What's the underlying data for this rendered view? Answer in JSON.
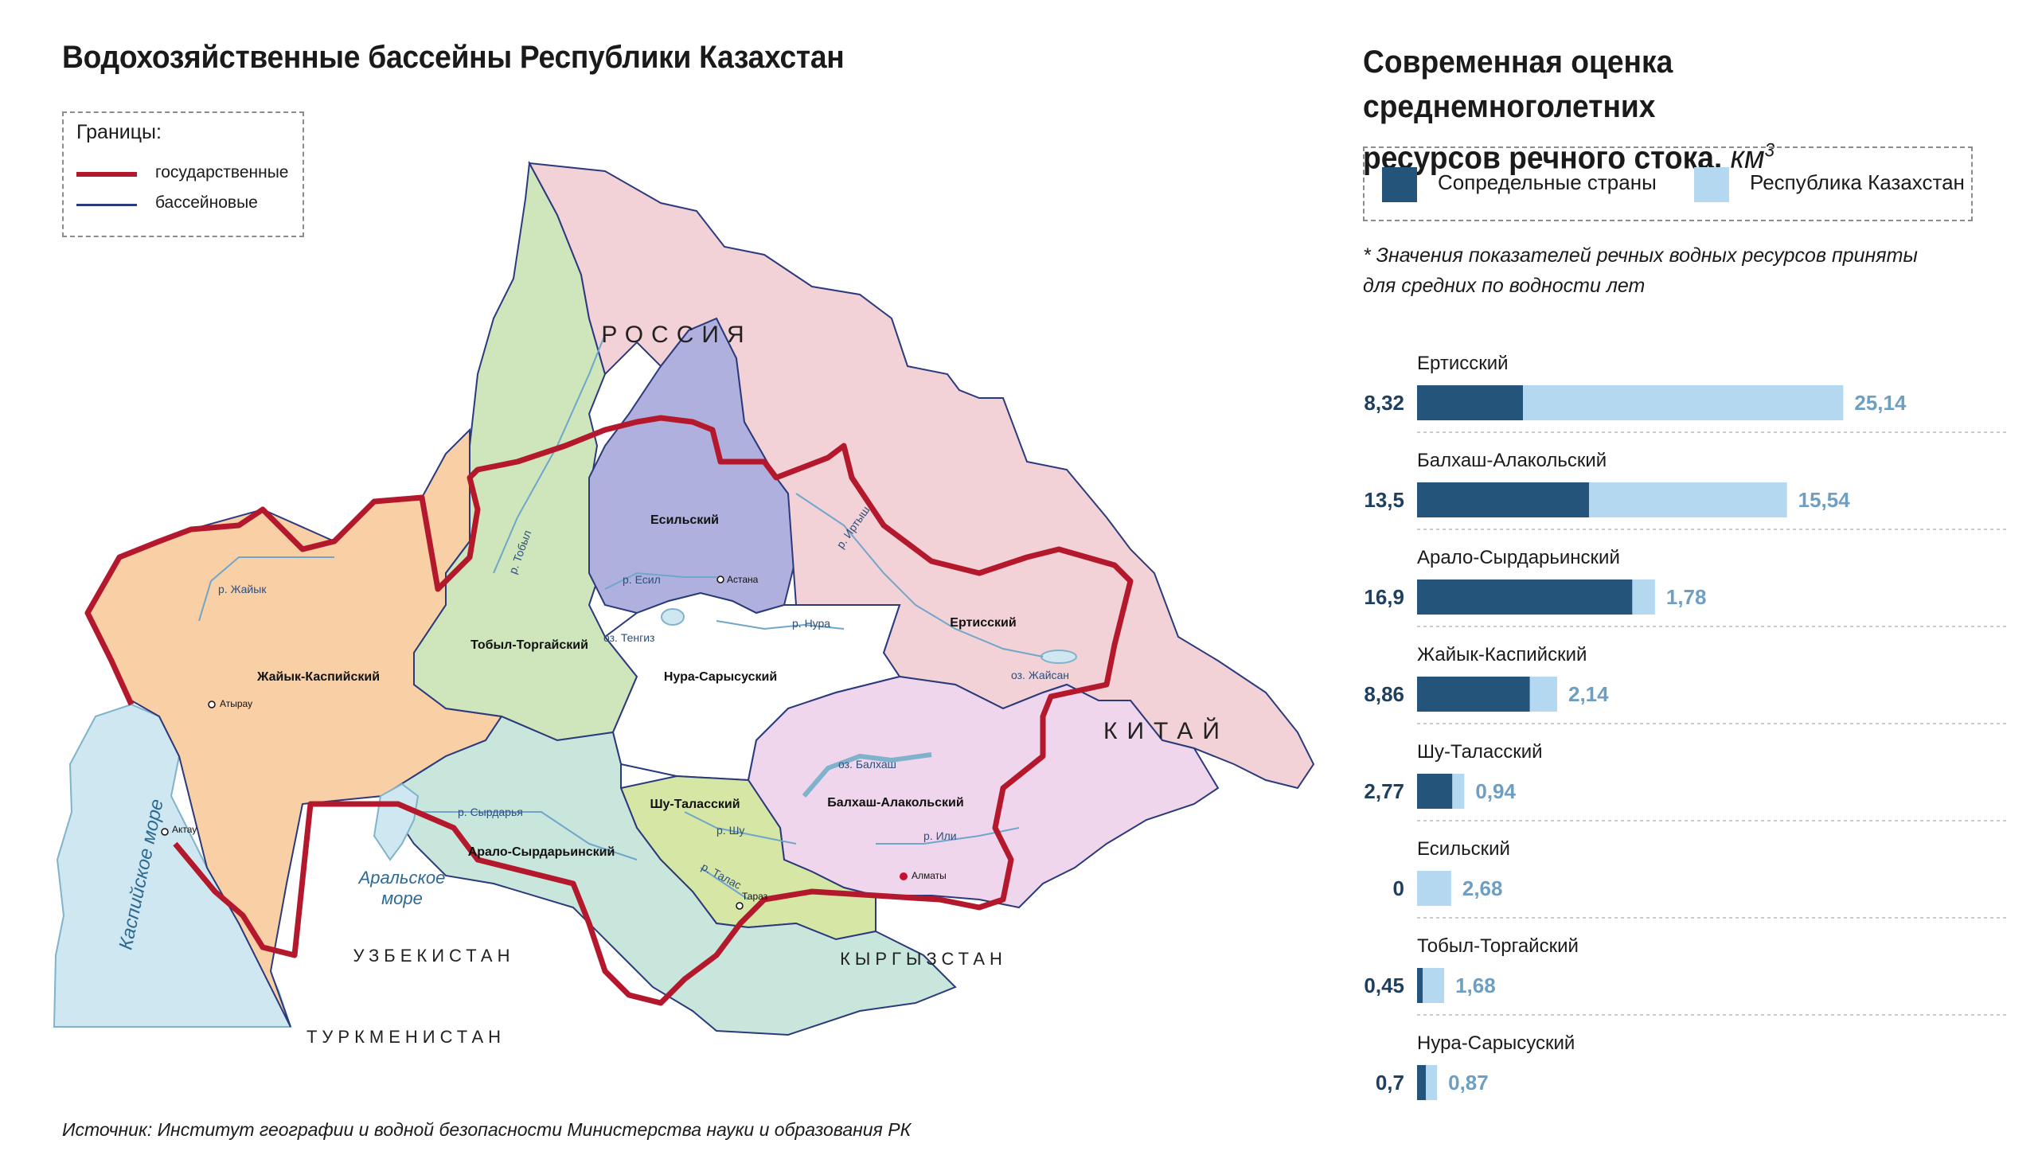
{
  "map": {
    "title": "Водохозяйственные бассейны Республики Казахстан",
    "legend": {
      "title": "Границы:",
      "state_label": "государственные",
      "basin_label": "бассейновые"
    },
    "countries": {
      "russia": "РОССИЯ",
      "china": "КИТАЙ",
      "uzbekistan": "УЗБЕКИСТАН",
      "turkmenistan": "ТУРКМЕНИСТАН",
      "kyrgyzstan": "КЫРГЫЗСТАН"
    },
    "basins": {
      "esil": "Есильский",
      "tobol": "Тобыл-Торгайский",
      "zhaiyk": "Жайык-Каспийский",
      "nura": "Нура-Сарысуский",
      "ertis": "Ертисский",
      "balkhash": "Балхаш-Алакольский",
      "shu": "Шу-Таласский",
      "aral": "Арало-Сырдарьинский"
    },
    "water_bodies": {
      "caspian": "Каспийское море",
      "aral_line1": "Аральское",
      "aral_line2": "море",
      "tengiz": "оз. Тенгиз",
      "balkhash_lake": "оз. Балхаш",
      "zhaisan": "оз. Жайсан"
    },
    "rivers": {
      "zhaiyk": "р. Жайык",
      "tobyl": "р. Тобыл",
      "esil": "р. Есил",
      "irtysh": "р. Иртыш",
      "nura": "р. Нура",
      "syrdarya": "р. Сырдарья",
      "shu": "р. Шу",
      "talas": "р. Талас",
      "ili": "р. Или"
    },
    "cities": {
      "astana": "Астана",
      "atyrau": "Атырау",
      "aktau": "Актау",
      "taraz": "Тараз",
      "almaty": "Алматы"
    },
    "colors": {
      "state_border": "#b4182c",
      "basin_border": "#2a3a7c",
      "zhaiyk": "#f9cfa6",
      "tobol": "#cfe6bd",
      "esil": "#b0b0de",
      "nura": "#ffffff",
      "ertis": "#f2d2d6",
      "balkhash": "#f0d6ec",
      "shu": "#d6e6a4",
      "aral": "#c9e6dd",
      "water": "#cfe7f1"
    },
    "source": "Источник: Институт географии и водной безопасности Министерства науки и образования РК"
  },
  "chart": {
    "title_line1": "Современная оценка среднемноголетних",
    "title_line2": "ресурсов речного стока,",
    "title_unit": "км",
    "title_unit_sup": "3",
    "legend": {
      "neighbors": "Сопредельные страны",
      "kazakhstan": "Республика Казахстан"
    },
    "footnote_line1": "* Значения показателей речных водных ресурсов приняты",
    "footnote_line2": "для средних по водности лет",
    "colors": {
      "neighbors": "#25547a",
      "kazakhstan": "#b5d8f1",
      "kz_value_text": "#6e9fc2",
      "neighbor_value_text": "#1e3f5e"
    }
  },
  "chart_data": {
    "type": "bar",
    "orientation": "horizontal",
    "stacked": true,
    "categories": [
      "Ертисский",
      "Балхаш-Алакольский",
      "Арало-Сырдарьинский",
      "Жайык-Каспийский",
      "Шу-Таласский",
      "Есильский",
      "Тобыл-Торгайский",
      "Нура-Сарысуский"
    ],
    "series": [
      {
        "name": "Сопредельные страны",
        "values": [
          8.32,
          13.5,
          16.9,
          8.86,
          2.77,
          0,
          0.45,
          0.7
        ],
        "labels": [
          "8,32",
          "13,5",
          "16,9",
          "8,86",
          "2,77",
          "0",
          "0,45",
          "0,7"
        ]
      },
      {
        "name": "Республика Казахстан",
        "values": [
          25.14,
          15.54,
          1.78,
          2.14,
          0.94,
          2.68,
          1.68,
          0.87
        ],
        "labels": [
          "25,14",
          "15,54",
          "1,78",
          "2,14",
          "0,94",
          "2,68",
          "1,68",
          "0,87"
        ]
      }
    ],
    "grid": false,
    "legend_position": "top"
  }
}
